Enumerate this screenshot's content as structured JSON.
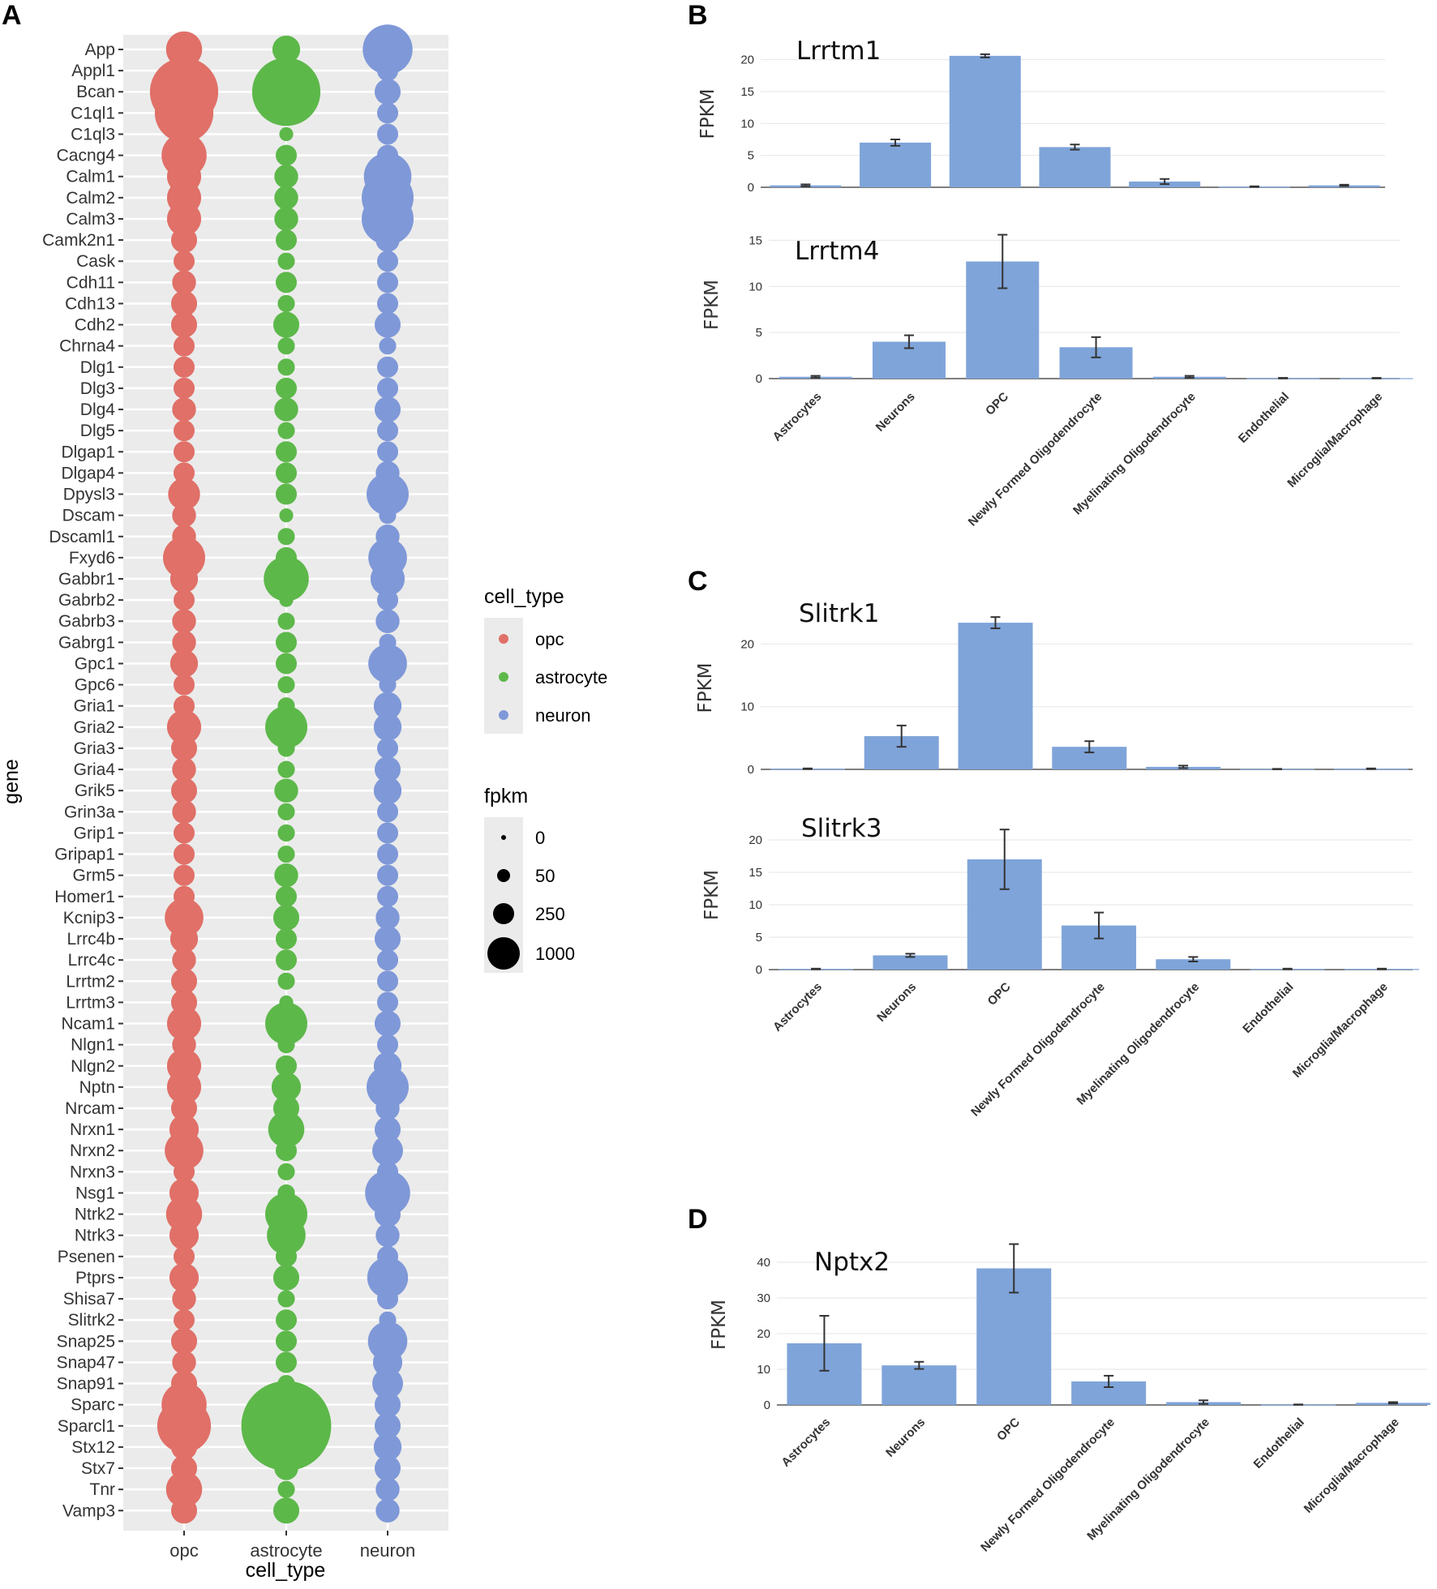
{
  "panels": {
    "a": "A",
    "b": "B",
    "c": "C",
    "d": "D"
  },
  "chart_data": [
    {
      "type": "scatter",
      "title": "",
      "xlabel": "cell_type",
      "ylabel": "gene",
      "categories": [
        "opc",
        "astrocyte",
        "neuron"
      ],
      "colors": {
        "opc": "#e07068",
        "astrocyte": "#5db84a",
        "neuron": "#7f98d8"
      },
      "genes": [
        "App",
        "Appl1",
        "Bcan",
        "C1ql1",
        "C1ql3",
        "Cacng4",
        "Calm1",
        "Calm2",
        "Calm3",
        "Camk2n1",
        "Cask",
        "Cdh11",
        "Cdh13",
        "Cdh2",
        "Chrna4",
        "Dlg1",
        "Dlg3",
        "Dlg4",
        "Dlg5",
        "Dlgap1",
        "Dlgap4",
        "Dpysl3",
        "Dscam",
        "Dscaml1",
        "Fxyd6",
        "Gabbr1",
        "Gabrb2",
        "Gabrb3",
        "Gabrg1",
        "Gpc1",
        "Gpc6",
        "Gria1",
        "Gria2",
        "Gria3",
        "Gria4",
        "Grik5",
        "Grin3a",
        "Grip1",
        "Gripap1",
        "Grm5",
        "Homer1",
        "Kcnip3",
        "Lrrc4b",
        "Lrrc4c",
        "Lrrtm2",
        "Lrrtm3",
        "Ncam1",
        "Nlgn1",
        "Nlgn2",
        "Nptn",
        "Nrcam",
        "Nrxn1",
        "Nrxn2",
        "Nrxn3",
        "Nsg1",
        "Ntrk2",
        "Ntrk3",
        "Psenen",
        "Ptprs",
        "Shisa7",
        "Slitrk2",
        "Snap25",
        "Snap47",
        "Snap91",
        "Sparc",
        "Sparcl1",
        "Stx12",
        "Stx7",
        "Tnr",
        "Vamp3"
      ],
      "fpkm": {
        "opc": [
          120,
          20,
          1000,
          600,
          60,
          250,
          100,
          100,
          100,
          40,
          20,
          30,
          40,
          40,
          20,
          20,
          20,
          30,
          20,
          20,
          20,
          80,
          30,
          30,
          200,
          50,
          20,
          30,
          30,
          50,
          20,
          20,
          100,
          40,
          30,
          40,
          30,
          20,
          20,
          20,
          20,
          150,
          50,
          30,
          40,
          40,
          100,
          30,
          100,
          100,
          40,
          60,
          150,
          20,
          60,
          120,
          60,
          20,
          60,
          30,
          20,
          40,
          30,
          40,
          250,
          450,
          40,
          40,
          120,
          40
        ],
        "astrocyte": [
          50,
          20,
          1000,
          5,
          5,
          20,
          30,
          30,
          30,
          20,
          10,
          20,
          10,
          40,
          10,
          10,
          20,
          30,
          10,
          20,
          20,
          20,
          5,
          10,
          20,
          250,
          5,
          10,
          20,
          20,
          10,
          10,
          200,
          10,
          10,
          30,
          10,
          10,
          10,
          30,
          20,
          40,
          20,
          20,
          10,
          5,
          200,
          10,
          20,
          60,
          40,
          120,
          20,
          10,
          10,
          200,
          150,
          20,
          40,
          10,
          20,
          20,
          20,
          10,
          100,
          2500,
          60,
          30,
          10,
          40
        ],
        "neuron": [
          350,
          20,
          40,
          20,
          20,
          20,
          300,
          400,
          400,
          30,
          20,
          20,
          20,
          40,
          10,
          20,
          20,
          40,
          20,
          20,
          30,
          200,
          10,
          30,
          150,
          100,
          20,
          30,
          10,
          150,
          10,
          50,
          50,
          20,
          40,
          50,
          20,
          20,
          20,
          20,
          20,
          30,
          40,
          20,
          20,
          20,
          40,
          20,
          50,
          200,
          30,
          40,
          70,
          20,
          250,
          40,
          30,
          20,
          180,
          20,
          10,
          160,
          60,
          70,
          40,
          40,
          50,
          40,
          30,
          30
        ]
      },
      "legend": {
        "color_title": "cell_type",
        "color_entries": [
          "opc",
          "astrocyte",
          "neuron"
        ],
        "size_title": "fpkm",
        "size_entries": [
          "0",
          "50",
          "250",
          "1000"
        ]
      }
    },
    {
      "type": "bar",
      "title": "Lrrtm1",
      "ylabel": "FPKM",
      "categories": [
        "Astrocytes",
        "Neurons",
        "OPC",
        "Newly Formed Oligodendrocyte",
        "Myelinating Oligodendrocyte",
        "Endothelial",
        "Microglia/Macrophage"
      ],
      "values": [
        0.3,
        7,
        20.6,
        6.3,
        0.9,
        0.1,
        0.3
      ],
      "errors": [
        0.15,
        0.5,
        0.25,
        0.4,
        0.4,
        0.05,
        0.1
      ],
      "ylim": [
        0,
        23
      ],
      "yticks": [
        0,
        5,
        10,
        15,
        20
      ]
    },
    {
      "type": "bar",
      "title": "Lrrtm4",
      "ylabel": "FPKM",
      "categories": [
        "Astrocytes",
        "Neurons",
        "OPC",
        "Newly Formed Oligodendrocyte",
        "Myelinating Oligodendrocyte",
        "Endothelial",
        "Microglia/Macrophage"
      ],
      "values": [
        0.2,
        4,
        12.7,
        3.4,
        0.2,
        0.05,
        0.05
      ],
      "errors": [
        0.1,
        0.7,
        2.9,
        1.1,
        0.1,
        0.03,
        0.03
      ],
      "ylim": [
        0,
        16
      ],
      "yticks": [
        0,
        5,
        10,
        15
      ]
    },
    {
      "type": "bar",
      "title": "Slitrk1",
      "ylabel": "FPKM",
      "categories": [
        "Astrocytes",
        "Neurons",
        "OPC",
        "Newly Formed Oligodendrocyte",
        "Myelinating Oligodendrocyte",
        "Endothelial",
        "Microglia/Macrophage"
      ],
      "values": [
        0.1,
        5.3,
        23.4,
        3.6,
        0.4,
        0.05,
        0.1
      ],
      "errors": [
        0.05,
        1.7,
        0.9,
        0.9,
        0.2,
        0.03,
        0.05
      ],
      "ylim": [
        0,
        26
      ],
      "yticks": [
        0,
        10,
        20
      ]
    },
    {
      "type": "bar",
      "title": "Slitrk3",
      "ylabel": "FPKM",
      "categories": [
        "Astrocytes",
        "Neurons",
        "OPC",
        "Newly Formed Oligodendrocyte",
        "Myelinating Oligodendrocyte",
        "Endothelial",
        "Microglia/Macrophage"
      ],
      "values": [
        0.1,
        2.2,
        17,
        6.8,
        1.6,
        0.1,
        0.1
      ],
      "errors": [
        0.05,
        0.25,
        4.6,
        2,
        0.35,
        0.05,
        0.05
      ],
      "ylim": [
        0,
        23
      ],
      "yticks": [
        0,
        5,
        10,
        15,
        20
      ]
    },
    {
      "type": "bar",
      "title": "Nptx2",
      "ylabel": "FPKM",
      "categories": [
        "Astrocytes",
        "Neurons",
        "OPC",
        "Newly Formed Oligodendrocyte",
        "Myelinating Oligodendrocyte",
        "Endothelial",
        "Microglia/Macrophage"
      ],
      "values": [
        17.3,
        11.1,
        38.3,
        6.6,
        0.8,
        0.1,
        0.6
      ],
      "errors": [
        7.7,
        1,
        6.8,
        1.6,
        0.5,
        0.05,
        0.2
      ],
      "ylim": [
        0,
        45
      ],
      "yticks": [
        0,
        10,
        20,
        30,
        40
      ]
    }
  ]
}
